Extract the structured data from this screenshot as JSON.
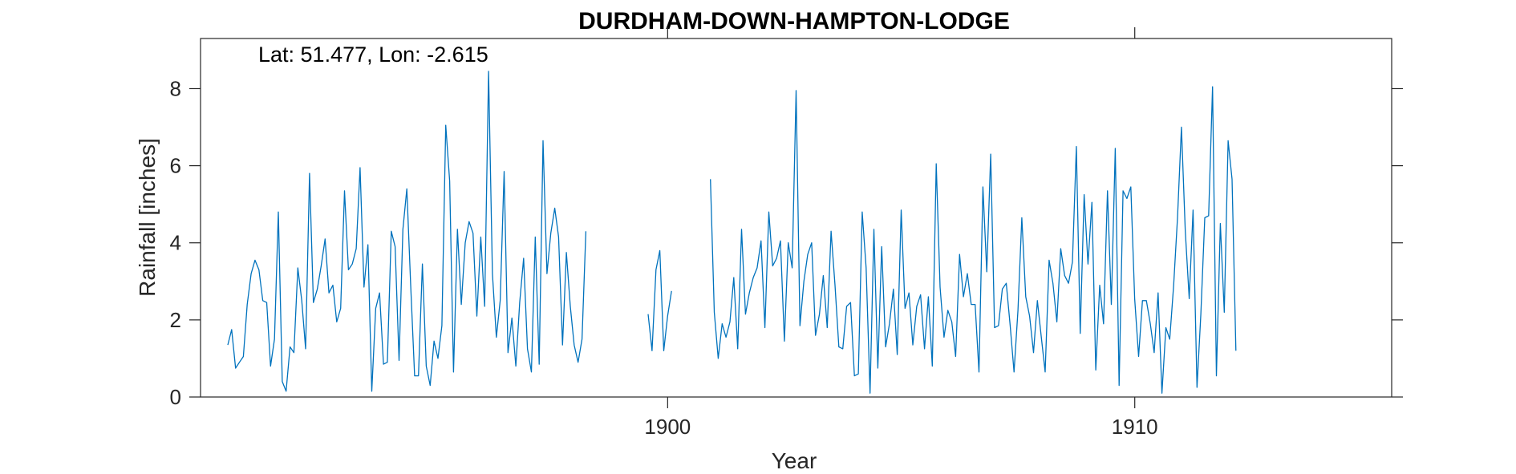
{
  "chart_data": {
    "type": "line",
    "title": "DURDHAM-DOWN-HAMPTON-LODGE",
    "annotation": "Lat: 51.477, Lon: -2.615",
    "xlabel": "Year",
    "ylabel": "Rainfall [inches]",
    "xlim": [
      1890.0,
      1915.5
    ],
    "ylim": [
      0,
      9.3
    ],
    "xticks": [
      1900,
      1910
    ],
    "yticks": [
      0,
      2,
      4,
      6,
      8
    ],
    "grid": false,
    "line_color": "#0072BD",
    "series": [
      {
        "start_year": 1890.583,
        "step_years": 0.08333,
        "values": [
          1.35,
          1.75,
          0.75,
          0.9,
          1.05,
          2.4,
          3.2,
          3.55,
          3.3,
          2.5,
          2.45,
          0.8,
          1.5,
          4.8,
          0.4,
          0.15,
          1.3,
          1.15,
          3.35,
          2.5,
          1.25,
          5.8,
          2.45,
          2.8,
          3.4,
          4.1,
          2.7,
          2.9,
          1.95,
          2.3,
          5.35,
          3.3,
          3.45,
          3.85,
          5.95,
          2.85,
          3.95,
          0.15,
          2.3,
          2.7,
          0.85,
          0.9,
          4.3,
          3.9,
          0.95,
          4.35,
          5.4,
          2.9,
          0.55,
          0.55,
          3.45,
          0.8,
          0.3,
          1.45,
          1.0,
          1.85,
          7.05,
          5.6,
          0.65,
          4.35,
          2.4,
          4.0,
          4.55,
          4.25,
          2.1,
          4.15,
          2.35,
          8.45,
          3.2,
          1.55,
          2.5,
          5.85,
          1.15,
          2.05,
          0.8,
          2.45,
          3.6,
          1.25,
          0.65,
          4.15,
          0.85,
          6.65,
          3.2,
          4.25,
          4.9,
          4.15,
          1.35,
          3.75,
          2.35,
          1.35,
          0.9,
          1.5,
          4.3,
          null,
          null,
          null,
          null,
          null,
          null,
          null,
          null,
          null,
          null,
          null,
          null,
          null,
          null,
          null,
          2.15,
          1.2,
          3.3,
          3.8,
          1.2,
          2.1,
          2.75,
          null,
          null,
          null,
          null,
          null,
          null,
          null,
          null,
          null,
          5.65,
          2.2,
          1.0,
          1.9,
          1.55,
          1.95,
          3.1,
          1.25,
          4.35,
          2.15,
          2.7,
          3.1,
          3.35,
          4.05,
          1.8,
          4.8,
          3.4,
          3.6,
          4.05,
          1.45,
          4.0,
          3.35,
          7.95,
          1.85,
          3.0,
          3.7,
          4.0,
          1.6,
          2.15,
          3.15,
          1.8,
          4.3,
          2.9,
          1.3,
          1.25,
          2.35,
          2.45,
          0.55,
          0.6,
          4.8,
          3.35,
          0.1,
          4.35,
          0.75,
          3.9,
          1.3,
          1.9,
          2.8,
          1.1,
          4.85,
          2.3,
          2.7,
          1.35,
          2.35,
          2.65,
          1.25,
          2.6,
          0.8,
          6.05,
          2.85,
          1.55,
          2.25,
          1.95,
          1.05,
          3.7,
          2.6,
          3.2,
          2.4,
          2.4,
          0.65,
          5.45,
          3.25,
          6.3,
          1.8,
          1.85,
          2.8,
          2.95,
          1.85,
          0.65,
          2.25,
          4.65,
          2.6,
          2.1,
          1.15,
          2.5,
          1.55,
          0.65,
          3.55,
          2.95,
          1.95,
          3.85,
          3.15,
          2.95,
          3.5,
          6.5,
          1.65,
          5.25,
          3.45,
          5.05,
          0.7,
          2.9,
          1.9,
          5.35,
          2.4,
          6.45,
          0.3,
          5.35,
          5.15,
          5.45,
          2.55,
          1.05,
          2.5,
          2.5,
          1.9,
          1.15,
          2.7,
          0.1,
          1.8,
          1.5,
          2.9,
          4.65,
          7.0,
          4.3,
          2.55,
          4.85,
          0.25,
          2.15,
          4.65,
          4.7,
          8.05,
          0.55,
          4.5,
          2.2,
          6.65,
          5.65,
          1.2
        ]
      }
    ]
  }
}
